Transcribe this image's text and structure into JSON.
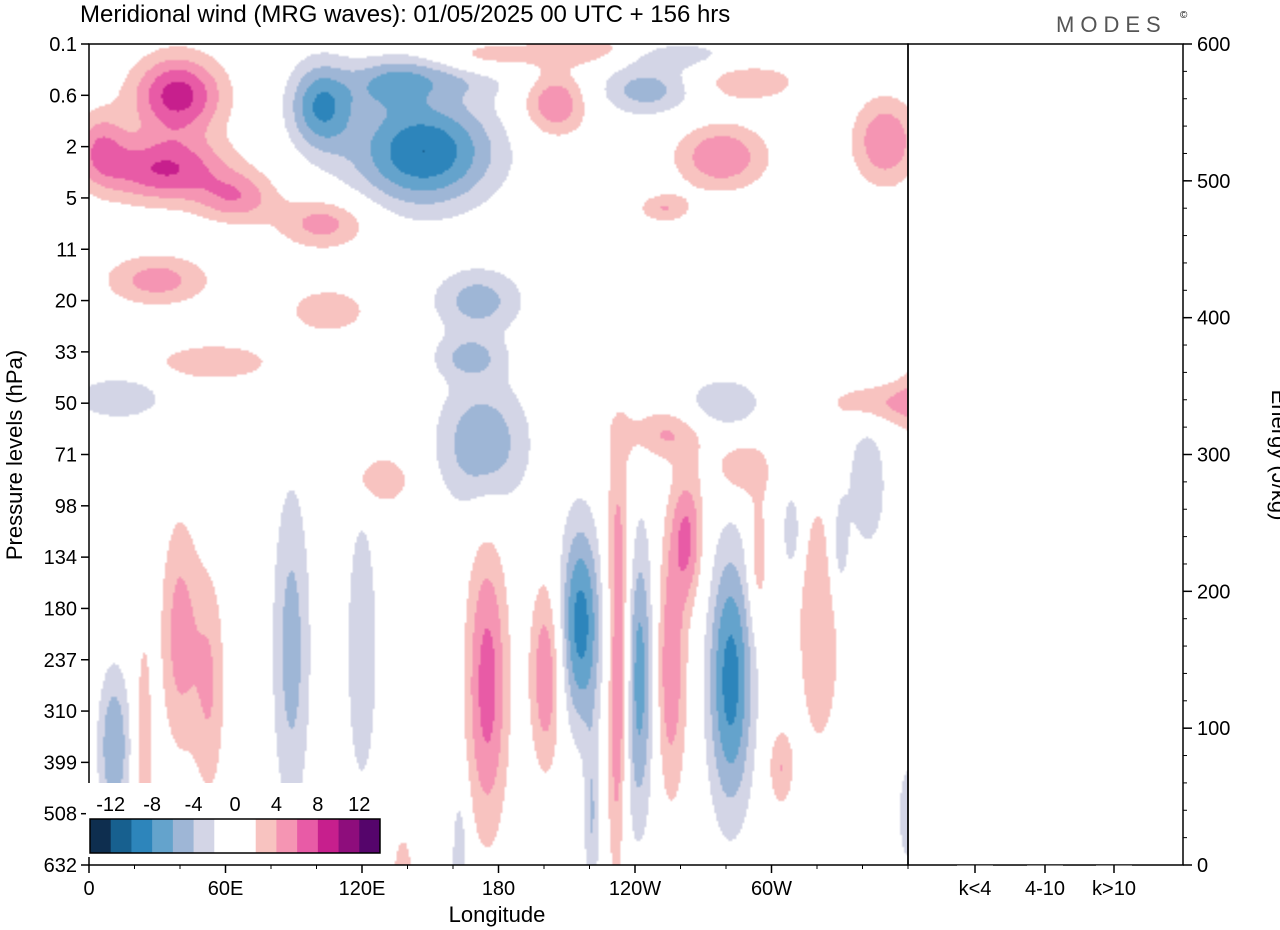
{
  "title": "Meridional wind (MRG waves):  01/05/2025  00 UTC  + 156 hrs",
  "logo": "MODES",
  "logo_mark": "©",
  "chart_data": [
    {
      "type": "heatmap",
      "title": "Meridional wind (MRG waves):  01/05/2025  00 UTC  + 156 hrs",
      "xlabel": "Longitude",
      "ylabel": "Pressure levels (hPa)",
      "x_ticks": [
        "0",
        "60E",
        "120E",
        "180",
        "120W",
        "60W"
      ],
      "y_ticks": [
        "0.1",
        "0.6",
        "2",
        "5",
        "11",
        "20",
        "33",
        "50",
        "71",
        "98",
        "134",
        "180",
        "237",
        "310",
        "399",
        "508",
        "632"
      ],
      "xlim": [
        0,
        360
      ],
      "colorbar": {
        "labels": [
          "-12",
          "-8",
          "-4",
          "0",
          "4",
          "8",
          "12"
        ],
        "colors": [
          "#0e2e4f",
          "#17608f",
          "#2d85bb",
          "#64a3cc",
          "#9eb6d6",
          "#d3d5e6",
          "#ffffff",
          "#ffffff",
          "#f8c3c0",
          "#f595b3",
          "#e85ba6",
          "#c71f8d",
          "#8e0d7c",
          "#55056b"
        ]
      },
      "blobs": [
        {
          "lon": 39,
          "lev": 1.0,
          "sx": 14,
          "sy": 0.55,
          "value": 9
        },
        {
          "lon": 33,
          "lev": 2.45,
          "sx": 20,
          "sy": 0.45,
          "value": 8
        },
        {
          "lon": 5,
          "lev": 2.0,
          "sx": 8,
          "sy": 0.5,
          "value": 5
        },
        {
          "lon": 65,
          "lev": 3.0,
          "sx": 12,
          "sy": 0.35,
          "value": 5
        },
        {
          "lon": 103,
          "lev": 3.5,
          "sx": 14,
          "sy": 0.35,
          "value": 5
        },
        {
          "lon": 30,
          "lev": 4.6,
          "sx": 16,
          "sy": 0.35,
          "value": 5
        },
        {
          "lon": 102,
          "lev": 1.2,
          "sx": 10,
          "sy": 0.6,
          "value": -8
        },
        {
          "lon": 147,
          "lev": 2.1,
          "sx": 22,
          "sy": 0.75,
          "value": -10
        },
        {
          "lon": 131,
          "lev": 0.8,
          "sx": 12,
          "sy": 0.35,
          "value": -4
        },
        {
          "lon": 158,
          "lev": 0.6,
          "sx": 22,
          "sy": 0.3,
          "value": -4
        },
        {
          "lon": 205,
          "lev": 1.15,
          "sx": 10,
          "sy": 0.45,
          "value": 6
        },
        {
          "lon": 172,
          "lev": 0.3,
          "sx": 15,
          "sy": 0.25,
          "value": 4
        },
        {
          "lon": 222,
          "lev": 0.15,
          "sx": 20,
          "sy": 0.2,
          "value": 5
        },
        {
          "lon": 245,
          "lev": 0.9,
          "sx": 15,
          "sy": 0.35,
          "value": -5
        },
        {
          "lon": 278,
          "lev": 2.2,
          "sx": 14,
          "sy": 0.45,
          "value": 6
        },
        {
          "lon": 250,
          "lev": 0.2,
          "sx": 22,
          "sy": 0.2,
          "value": -4
        },
        {
          "lon": 290,
          "lev": 0.75,
          "sx": 15,
          "sy": 0.25,
          "value": 4
        },
        {
          "lon": 350,
          "lev": 1.9,
          "sx": 10,
          "sy": 0.6,
          "value": 6
        },
        {
          "lon": 253,
          "lev": 3.2,
          "sx": 8,
          "sy": 0.2,
          "value": 4
        },
        {
          "lon": 171,
          "lev": 5.0,
          "sx": 14,
          "sy": 0.45,
          "value": -5
        },
        {
          "lon": 105,
          "lev": 5.2,
          "sx": 12,
          "sy": 0.3,
          "value": 4
        },
        {
          "lon": 167,
          "lev": 6.1,
          "sx": 11,
          "sy": 0.3,
          "value": -4
        },
        {
          "lon": 55,
          "lev": 6.2,
          "sx": 18,
          "sy": 0.25,
          "value": 4
        },
        {
          "lon": 173,
          "lev": 7.8,
          "sx": 14,
          "sy": 0.9,
          "value": -6
        },
        {
          "lon": 279,
          "lev": 7.0,
          "sx": 12,
          "sy": 0.35,
          "value": -4
        },
        {
          "lon": 348,
          "lev": 7.0,
          "sx": 16,
          "sy": 0.3,
          "value": 4
        },
        {
          "lon": 252,
          "lev": 7.6,
          "sx": 13,
          "sy": 0.35,
          "value": 4
        },
        {
          "lon": 13,
          "lev": 6.9,
          "sx": 14,
          "sy": 0.3,
          "value": -4
        },
        {
          "lon": 128,
          "lev": 8.5,
          "sx": 10,
          "sy": 0.35,
          "value": 4
        },
        {
          "lon": 287,
          "lev": 8.3,
          "sx": 9,
          "sy": 0.4,
          "value": 4
        },
        {
          "lon": 342,
          "lev": 8.6,
          "sx": 6,
          "sy": 0.9,
          "value": -4
        },
        {
          "lon": 175,
          "lev": 12.5,
          "sx": 6.5,
          "sy": 2.0,
          "value": 7
        },
        {
          "lon": 216,
          "lev": 11.3,
          "sx": 6.5,
          "sy": 1.4,
          "value": -9
        },
        {
          "lon": 201,
          "lev": 12.3,
          "sx": 5,
          "sy": 1.3,
          "value": 6
        },
        {
          "lon": 233,
          "lev": 10.2,
          "sx": 4,
          "sy": 1.8,
          "value": 6
        },
        {
          "lon": 241,
          "lev": 12.3,
          "sx": 6,
          "sy": 2.0,
          "value": -8
        },
        {
          "lon": 255,
          "lev": 12.2,
          "sx": 5.5,
          "sy": 1.8,
          "value": 6
        },
        {
          "lon": 234,
          "lev": 12.6,
          "sx": 3.5,
          "sy": 1.3,
          "value": 5
        },
        {
          "lon": 282,
          "lev": 12.4,
          "sx": 7,
          "sy": 1.8,
          "value": -9
        },
        {
          "lon": 263,
          "lev": 9.6,
          "sx": 5,
          "sy": 0.9,
          "value": 6
        },
        {
          "lon": 40,
          "lev": 11.5,
          "sx": 6,
          "sy": 1.6,
          "value": 5
        },
        {
          "lon": 53,
          "lev": 12.5,
          "sx": 5,
          "sy": 1.6,
          "value": 4
        },
        {
          "lon": 89,
          "lev": 11.8,
          "sx": 6,
          "sy": 2.3,
          "value": -5
        },
        {
          "lon": 120,
          "lev": 11.8,
          "sx": 5,
          "sy": 2.0,
          "value": -4
        },
        {
          "lon": 11,
          "lev": 13.7,
          "sx": 5,
          "sy": 1.1,
          "value": -6
        },
        {
          "lon": 24,
          "lev": 13.8,
          "sx": 2.5,
          "sy": 1.6,
          "value": 4
        },
        {
          "lon": 221,
          "lev": 15.1,
          "sx": 2.5,
          "sy": 1.3,
          "value": -4
        },
        {
          "lon": 232,
          "lev": 14.6,
          "sx": 3,
          "sy": 1.5,
          "value": 4
        },
        {
          "lon": 321,
          "lev": 11.3,
          "sx": 7,
          "sy": 1.8,
          "value": 4
        },
        {
          "lon": 309,
          "lev": 9.5,
          "sx": 3,
          "sy": 0.6,
          "value": -4
        },
        {
          "lon": 294,
          "lev": 10.0,
          "sx": 3,
          "sy": 0.9,
          "value": 4
        },
        {
          "lon": 330,
          "lev": 9.8,
          "sx": 3,
          "sy": 0.8,
          "value": -4
        },
        {
          "lon": 368,
          "lev": 6.9,
          "sx": 8,
          "sy": 0.6,
          "value": 4
        },
        {
          "lon": 138,
          "lev": 16.2,
          "sx": 3,
          "sy": 0.55,
          "value": 4
        },
        {
          "lon": 163,
          "lev": 15.8,
          "sx": 2.5,
          "sy": 0.9,
          "value": -4
        },
        {
          "lon": 360,
          "lev": 15.0,
          "sx": 3,
          "sy": 0.7,
          "value": -4
        },
        {
          "lon": 304,
          "lev": 14.1,
          "sx": 4,
          "sy": 0.55,
          "value": 4
        }
      ]
    },
    {
      "type": "bar",
      "ylabel": "Energy (J/kg)",
      "categories": [
        "k<4",
        "4-10",
        "k>10"
      ],
      "values": [
        0,
        0,
        0
      ],
      "ylim": [
        0,
        600
      ],
      "y_ticks": [
        "0",
        "100",
        "200",
        "300",
        "400",
        "500",
        "600"
      ]
    }
  ]
}
